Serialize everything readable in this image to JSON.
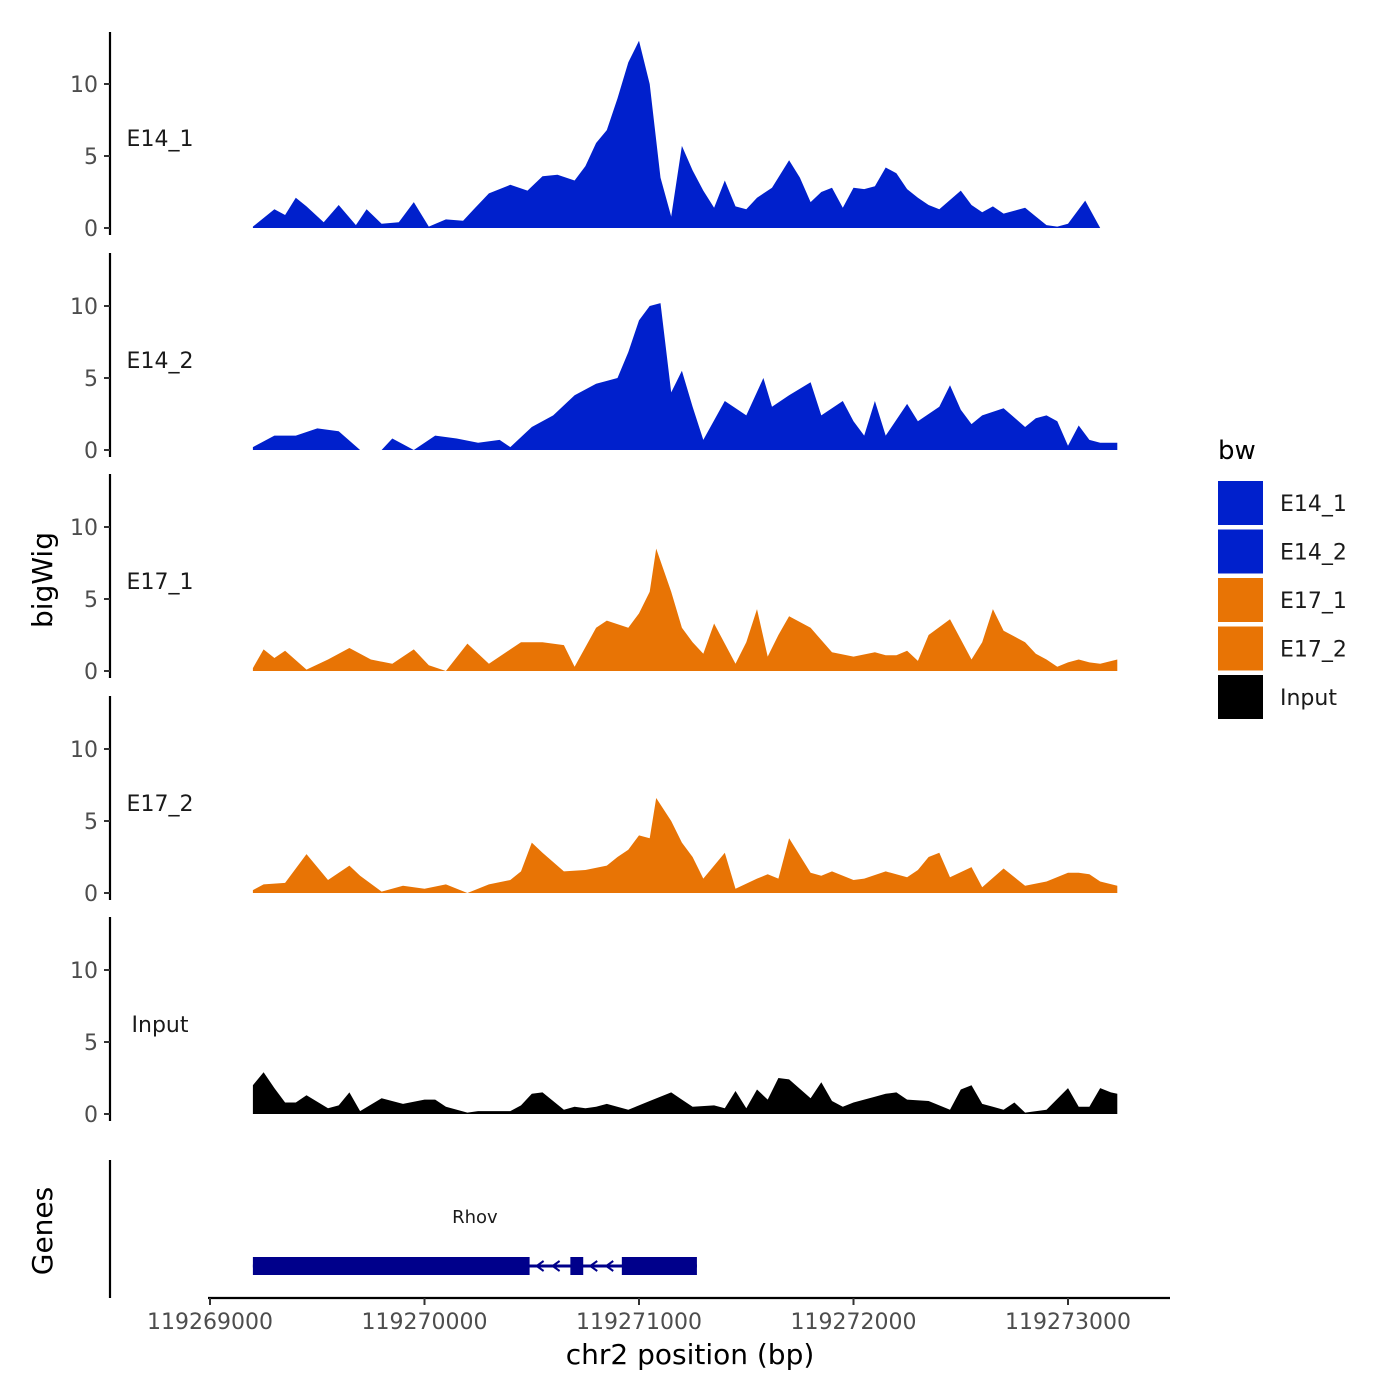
{
  "chart_data": {
    "type": "area",
    "title": "",
    "ylabel": "bigWig",
    "xlabel": "chr2 position (bp)",
    "xlim": [
      119268800,
      119273500
    ],
    "ylim": [
      0,
      14
    ],
    "xticks": [
      119269000,
      119270000,
      119271000,
      119272000,
      119273000
    ],
    "xtick_labels": [
      "119269000",
      "119270000",
      "119271000",
      "119272000",
      "119273000"
    ],
    "yticks": [
      0,
      5,
      10
    ],
    "ytick_labels": [
      "0",
      "5",
      "10"
    ],
    "grid": false,
    "legend": {
      "title": "bw",
      "position": "right",
      "entries": [
        {
          "label": "E14_1",
          "color": "#0020CC"
        },
        {
          "label": "E14_2",
          "color": "#0020CC"
        },
        {
          "label": "E17_1",
          "color": "#E87405"
        },
        {
          "label": "E17_2",
          "color": "#E87405"
        },
        {
          "label": "Input",
          "color": "#000000"
        }
      ]
    },
    "tracks": [
      {
        "name": "E14_1",
        "color": "#0020CC",
        "x": [
          119269200,
          119269300,
          119269350,
          119269400,
          119269450,
          119269530,
          119269600,
          119269680,
          119269730,
          119269800,
          119269880,
          119269950,
          119270020,
          119270100,
          119270180,
          119270230,
          119270300,
          119270400,
          119270480,
          119270550,
          119270620,
          119270700,
          119270750,
          119270800,
          119270850,
          119270900,
          119270950,
          119271000,
          119271050,
          119271100,
          119271150,
          119271200,
          119271250,
          119271300,
          119271350,
          119271400,
          119271450,
          119271500,
          119271550,
          119271620,
          119271700,
          119271750,
          119271800,
          119271850,
          119271900,
          119271950,
          119272000,
          119272050,
          119272100,
          119272150,
          119272200,
          119272250,
          119272300,
          119272350,
          119272400,
          119272500,
          119272550,
          119272600,
          119272650,
          119272700,
          119272800,
          119272850,
          119272900,
          119272950,
          119273000,
          119273080,
          119273150,
          119273230
        ],
        "values": [
          0.1,
          1.3,
          0.9,
          2.1,
          1.5,
          0.4,
          1.6,
          0.2,
          1.3,
          0.3,
          0.4,
          1.8,
          0.1,
          0.6,
          0.5,
          1.3,
          2.4,
          3.0,
          2.6,
          3.6,
          3.7,
          3.3,
          4.3,
          5.9,
          6.8,
          9.0,
          11.5,
          13.0,
          10.0,
          3.5,
          0.8,
          5.7,
          4.0,
          2.6,
          1.4,
          3.3,
          1.5,
          1.3,
          2.1,
          2.8,
          4.7,
          3.5,
          1.8,
          2.5,
          2.8,
          1.4,
          2.8,
          2.7,
          2.9,
          4.2,
          3.8,
          2.7,
          2.1,
          1.6,
          1.3,
          2.6,
          1.6,
          1.1,
          1.5,
          1.0,
          1.4,
          0.8,
          0.2,
          0.1,
          0.3,
          1.9,
          0,
          0
        ],
        "label_y": 5.7
      },
      {
        "name": "E14_2",
        "color": "#0020CC",
        "x": [
          119269200,
          119269300,
          119269400,
          119269500,
          119269600,
          119269700,
          119269800,
          119269850,
          119269950,
          119270050,
          119270150,
          119270250,
          119270350,
          119270400,
          119270500,
          119270600,
          119270700,
          119270800,
          119270900,
          119270950,
          119271000,
          119271050,
          119271100,
          119271150,
          119271200,
          119271250,
          119271300,
          119271400,
          119271500,
          119271580,
          119271620,
          119271700,
          119271800,
          119271850,
          119271950,
          119272000,
          119272050,
          119272100,
          119272150,
          119272250,
          119272300,
          119272400,
          119272450,
          119272500,
          119272550,
          119272600,
          119272700,
          119272800,
          119272850,
          119272900,
          119272950,
          119273000,
          119273050,
          119273100,
          119273150,
          119273230
        ],
        "values": [
          0.2,
          1.0,
          1.0,
          1.5,
          1.3,
          0,
          0,
          0.8,
          0.0,
          1.0,
          0.8,
          0.5,
          0.7,
          0.2,
          1.6,
          2.4,
          3.8,
          4.6,
          5.0,
          6.8,
          9.0,
          10.0,
          10.2,
          4.0,
          5.5,
          3.0,
          0.7,
          3.4,
          2.4,
          5.0,
          3.0,
          3.8,
          4.7,
          2.4,
          3.4,
          2.0,
          1.0,
          3.4,
          1.0,
          3.2,
          2.0,
          3.0,
          4.5,
          2.8,
          1.8,
          2.4,
          2.9,
          1.6,
          2.2,
          2.4,
          2.0,
          0.3,
          1.7,
          0.7,
          0.5,
          0.5
        ],
        "label_y": 5.7
      },
      {
        "name": "E17_1",
        "color": "#E87405",
        "x": [
          119269200,
          119269250,
          119269300,
          119269350,
          119269450,
          119269550,
          119269650,
          119269750,
          119269850,
          119269950,
          119270020,
          119270100,
          119270200,
          119270300,
          119270400,
          119270450,
          119270550,
          119270650,
          119270700,
          119270800,
          119270850,
          119270950,
          119271000,
          119271050,
          119271080,
          119271150,
          119271200,
          119271250,
          119271300,
          119271350,
          119271450,
          119271500,
          119271550,
          119271600,
          119271650,
          119271700,
          119271800,
          119271900,
          119272000,
          119272100,
          119272150,
          119272200,
          119272250,
          119272300,
          119272350,
          119272450,
          119272550,
          119272600,
          119272650,
          119272700,
          119272800,
          119272850,
          119272900,
          119272950,
          119273000,
          119273050,
          119273100,
          119273150,
          119273230
        ],
        "values": [
          0.2,
          1.5,
          0.9,
          1.4,
          0.1,
          0.8,
          1.6,
          0.8,
          0.5,
          1.5,
          0.4,
          0.0,
          1.9,
          0.5,
          1.5,
          2.0,
          2.0,
          1.8,
          0.3,
          3.0,
          3.5,
          3.0,
          4.0,
          5.5,
          8.5,
          5.5,
          3.0,
          2.0,
          1.2,
          3.3,
          0.5,
          2.0,
          4.3,
          1.0,
          2.5,
          3.8,
          3.0,
          1.3,
          1.0,
          1.3,
          1.1,
          1.1,
          1.4,
          0.7,
          2.5,
          3.6,
          0.8,
          2.0,
          4.3,
          2.8,
          2.0,
          1.2,
          0.8,
          0.3,
          0.6,
          0.8,
          0.6,
          0.5,
          0.8
        ],
        "label_y": 5.7
      },
      {
        "name": "E17_2",
        "color": "#E87405",
        "x": [
          119269200,
          119269250,
          119269350,
          119269450,
          119269550,
          119269650,
          119269700,
          119269800,
          119269900,
          119270000,
          119270100,
          119270200,
          119270300,
          119270400,
          119270450,
          119270500,
          119270550,
          119270650,
          119270750,
          119270850,
          119270900,
          119270950,
          119271000,
          119271050,
          119271080,
          119271150,
          119271200,
          119271250,
          119271300,
          119271400,
          119271450,
          119271550,
          119271600,
          119271650,
          119271700,
          119271800,
          119271850,
          119271900,
          119272000,
          119272050,
          119272150,
          119272250,
          119272300,
          119272350,
          119272400,
          119272450,
          119272550,
          119272600,
          119272700,
          119272800,
          119272900,
          119273000,
          119273050,
          119273100,
          119273150,
          119273230
        ],
        "values": [
          0.2,
          0.6,
          0.7,
          2.7,
          0.9,
          1.9,
          1.2,
          0.1,
          0.5,
          0.3,
          0.6,
          0.0,
          0.6,
          0.9,
          1.5,
          3.5,
          2.8,
          1.5,
          1.6,
          1.9,
          2.5,
          3.0,
          4.0,
          3.8,
          6.6,
          5.0,
          3.5,
          2.5,
          1.0,
          2.8,
          0.3,
          1.0,
          1.3,
          1.0,
          3.8,
          1.4,
          1.2,
          1.5,
          0.9,
          1.0,
          1.5,
          1.1,
          1.6,
          2.5,
          2.8,
          1.1,
          1.8,
          0.4,
          1.7,
          0.5,
          0.8,
          1.4,
          1.4,
          1.3,
          0.8,
          0.5
        ],
        "label_y": 5.7
      },
      {
        "name": "Input",
        "color": "#000000",
        "x": [
          119269200,
          119269250,
          119269300,
          119269350,
          119269400,
          119269450,
          119269550,
          119269600,
          119269650,
          119269700,
          119269800,
          119269900,
          119270000,
          119270050,
          119270100,
          119270200,
          119270250,
          119270300,
          119270350,
          119270400,
          119270450,
          119270500,
          119270550,
          119270650,
          119270700,
          119270750,
          119270800,
          119270850,
          119270950,
          119271050,
          119271150,
          119271200,
          119271250,
          119271350,
          119271400,
          119271450,
          119271500,
          119271550,
          119271600,
          119271650,
          119271700,
          119271800,
          119271850,
          119271900,
          119271950,
          119272000,
          119272050,
          119272100,
          119272150,
          119272200,
          119272250,
          119272350,
          119272450,
          119272500,
          119272550,
          119272600,
          119272650,
          119272700,
          119272750,
          119272800,
          119272900,
          119273000,
          119273050,
          119273100,
          119273150,
          119273200,
          119273230
        ],
        "values": [
          2.0,
          2.9,
          1.8,
          0.8,
          0.8,
          1.3,
          0.4,
          0.6,
          1.5,
          0.2,
          1.1,
          0.7,
          1.0,
          1.0,
          0.5,
          0.1,
          0.2,
          0.2,
          0.2,
          0.2,
          0.6,
          1.4,
          1.5,
          0.3,
          0.5,
          0.4,
          0.5,
          0.7,
          0.3,
          0.9,
          1.5,
          1.0,
          0.5,
          0.6,
          0.4,
          1.6,
          0.4,
          1.7,
          1.0,
          2.5,
          2.4,
          1.1,
          2.2,
          0.9,
          0.5,
          0.8,
          1.0,
          1.2,
          1.4,
          1.5,
          1.0,
          0.9,
          0.3,
          1.7,
          2.0,
          0.7,
          0.5,
          0.3,
          0.8,
          0.1,
          0.3,
          1.8,
          0.5,
          0.5,
          1.8,
          1.5,
          1.4
        ],
        "label_y": 5.7
      }
    ],
    "genes_track": {
      "title": "Genes",
      "genes": [
        {
          "name": "Rhov",
          "strand": "-",
          "start": 119269200,
          "end": 119271270,
          "exons": [
            [
              119269200,
              119270490
            ],
            [
              119270680,
              119270740
            ],
            [
              119270920,
              119271270
            ]
          ]
        }
      ]
    }
  }
}
